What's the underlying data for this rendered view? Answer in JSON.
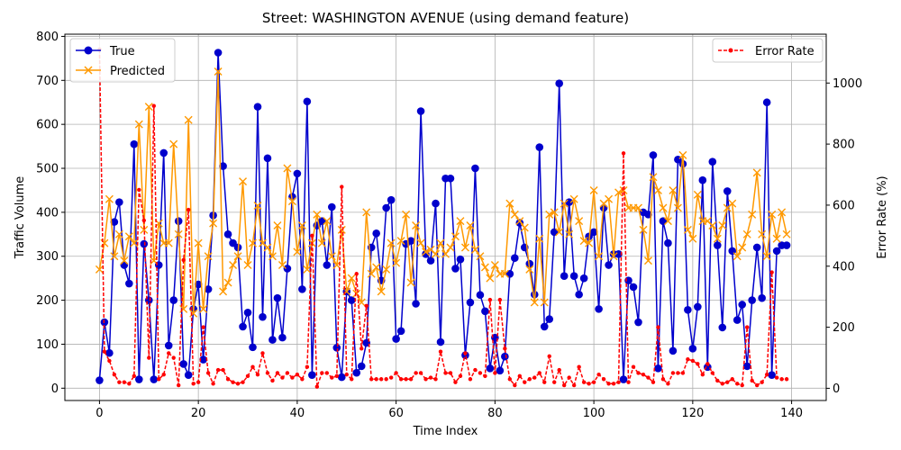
{
  "chart_data": {
    "type": "line",
    "title": "Street: WASHINGTON AVENUE (using demand feature)",
    "xlabel": "Time Index",
    "ylabel": "Traffic Volume",
    "ylabel_right": "Error Rate (%)",
    "xlim": [
      -7,
      147
    ],
    "ylim": [
      -28,
      805
    ],
    "ylim_right": [
      -40,
      1160
    ],
    "xticks": [
      0,
      20,
      40,
      60,
      80,
      100,
      120,
      140
    ],
    "yticks": [
      0,
      100,
      200,
      300,
      400,
      500,
      600,
      700,
      800
    ],
    "yticks_right": [
      0,
      200,
      400,
      600,
      800,
      1000
    ],
    "grid": true,
    "legend_left": "upper-left",
    "legend_right": "upper-right",
    "colors": {
      "true": "#0000cc",
      "predicted": "#ff9900",
      "error": "#ff0000"
    },
    "x": [
      0,
      1,
      2,
      3,
      4,
      5,
      6,
      7,
      8,
      9,
      10,
      11,
      12,
      13,
      14,
      15,
      16,
      17,
      18,
      19,
      20,
      21,
      22,
      23,
      24,
      25,
      26,
      27,
      28,
      29,
      30,
      31,
      32,
      33,
      34,
      35,
      36,
      37,
      38,
      39,
      40,
      41,
      42,
      43,
      44,
      45,
      46,
      47,
      48,
      49,
      50,
      51,
      52,
      53,
      54,
      55,
      56,
      57,
      58,
      59,
      60,
      61,
      62,
      63,
      64,
      65,
      66,
      67,
      68,
      69,
      70,
      71,
      72,
      73,
      74,
      75,
      76,
      77,
      78,
      79,
      80,
      81,
      82,
      83,
      84,
      85,
      86,
      87,
      88,
      89,
      90,
      91,
      92,
      93,
      94,
      95,
      96,
      97,
      98,
      99,
      100,
      101,
      102,
      103,
      104,
      105,
      106,
      107,
      108,
      109,
      110,
      111,
      112,
      113,
      114,
      115,
      116,
      117,
      118,
      119,
      120,
      121,
      122,
      123,
      124,
      125,
      126,
      127,
      128,
      129,
      130,
      131,
      132,
      133,
      134,
      135,
      136,
      137,
      138,
      139
    ],
    "series": [
      {
        "name": "True",
        "marker": "circle",
        "values": [
          18,
          150,
          80,
          378,
          423,
          280,
          238,
          555,
          20,
          328,
          200,
          20,
          280,
          535,
          97,
          200,
          380,
          55,
          30,
          180,
          236,
          65,
          225,
          393,
          763,
          505,
          350,
          330,
          320,
          140,
          172,
          93,
          640,
          162,
          523,
          110,
          205,
          115,
          272,
          435,
          488,
          225,
          652,
          30,
          370,
          380,
          280,
          412,
          92,
          25,
          220,
          200,
          35,
          50,
          103,
          320,
          352,
          245,
          410,
          428,
          112,
          130,
          328,
          335,
          192,
          630,
          305,
          290,
          420,
          105,
          477,
          477,
          272,
          293,
          75,
          195,
          500,
          212,
          175,
          45,
          115,
          40,
          72,
          260,
          296,
          376,
          320,
          283,
          213,
          548,
          140,
          157,
          355,
          693,
          255,
          423,
          255,
          213,
          250,
          345,
          355,
          180,
          410,
          280,
          305,
          305,
          20,
          245,
          230,
          150,
          400,
          395,
          530,
          45,
          380,
          330,
          85,
          520,
          510,
          178,
          90,
          185,
          473,
          48,
          515,
          325,
          138,
          448,
          312,
          155,
          190,
          50,
          200,
          320,
          205,
          650,
          30,
          312,
          325,
          325
        ]
      },
      {
        "name": "Predicted",
        "marker": "x",
        "values": [
          270,
          330,
          430,
          300,
          350,
          290,
          345,
          330,
          600,
          360,
          640,
          290,
          375,
          330,
          330,
          555,
          350,
          180,
          610,
          170,
          330,
          180,
          300,
          375,
          720,
          220,
          240,
          280,
          300,
          470,
          280,
          330,
          415,
          330,
          320,
          300,
          370,
          280,
          500,
          425,
          310,
          370,
          270,
          330,
          395,
          330,
          380,
          300,
          280,
          360,
          220,
          250,
          215,
          195,
          400,
          260,
          275,
          220,
          270,
          330,
          285,
          335,
          395,
          240,
          370,
          330,
          310,
          315,
          305,
          330,
          305,
          320,
          345,
          380,
          320,
          370,
          315,
          300,
          275,
          250,
          280,
          260,
          260,
          420,
          395,
          380,
          365,
          270,
          195,
          340,
          195,
          395,
          400,
          355,
          420,
          350,
          430,
          380,
          335,
          330,
          450,
          300,
          420,
          430,
          300,
          445,
          450,
          410,
          410,
          410,
          360,
          290,
          480,
          450,
          410,
          380,
          450,
          410,
          530,
          360,
          340,
          440,
          380,
          380,
          370,
          340,
          370,
          410,
          420,
          300,
          320,
          350,
          395,
          490,
          350,
          300,
          395,
          340,
          400,
          350
        ]
      },
      {
        "name": "Error Rate",
        "marker": "dot",
        "axis": "right",
        "values": [
          1110,
          120,
          90,
          45,
          20,
          20,
          15,
          40,
          650,
          550,
          100,
          925,
          30,
          45,
          115,
          100,
          10,
          420,
          585,
          15,
          20,
          200,
          50,
          15,
          60,
          60,
          30,
          20,
          15,
          20,
          40,
          70,
          45,
          115,
          50,
          25,
          50,
          35,
          50,
          35,
          45,
          30,
          70,
          500,
          5,
          50,
          50,
          35,
          40,
          660,
          45,
          30,
          375,
          130,
          270,
          30,
          30,
          30,
          30,
          35,
          50,
          30,
          30,
          30,
          50,
          50,
          30,
          35,
          30,
          120,
          50,
          50,
          20,
          40,
          115,
          30,
          60,
          50,
          40,
          290,
          50,
          290,
          130,
          30,
          10,
          40,
          20,
          30,
          35,
          50,
          20,
          105,
          20,
          60,
          10,
          35,
          10,
          70,
          20,
          15,
          20,
          45,
          30,
          15,
          15,
          20,
          770,
          20,
          70,
          50,
          45,
          35,
          20,
          200,
          30,
          15,
          50,
          50,
          50,
          95,
          90,
          80,
          45,
          80,
          50,
          25,
          15,
          20,
          30,
          15,
          10,
          200,
          25,
          10,
          20,
          45,
          380,
          35,
          30,
          30
        ]
      }
    ]
  }
}
